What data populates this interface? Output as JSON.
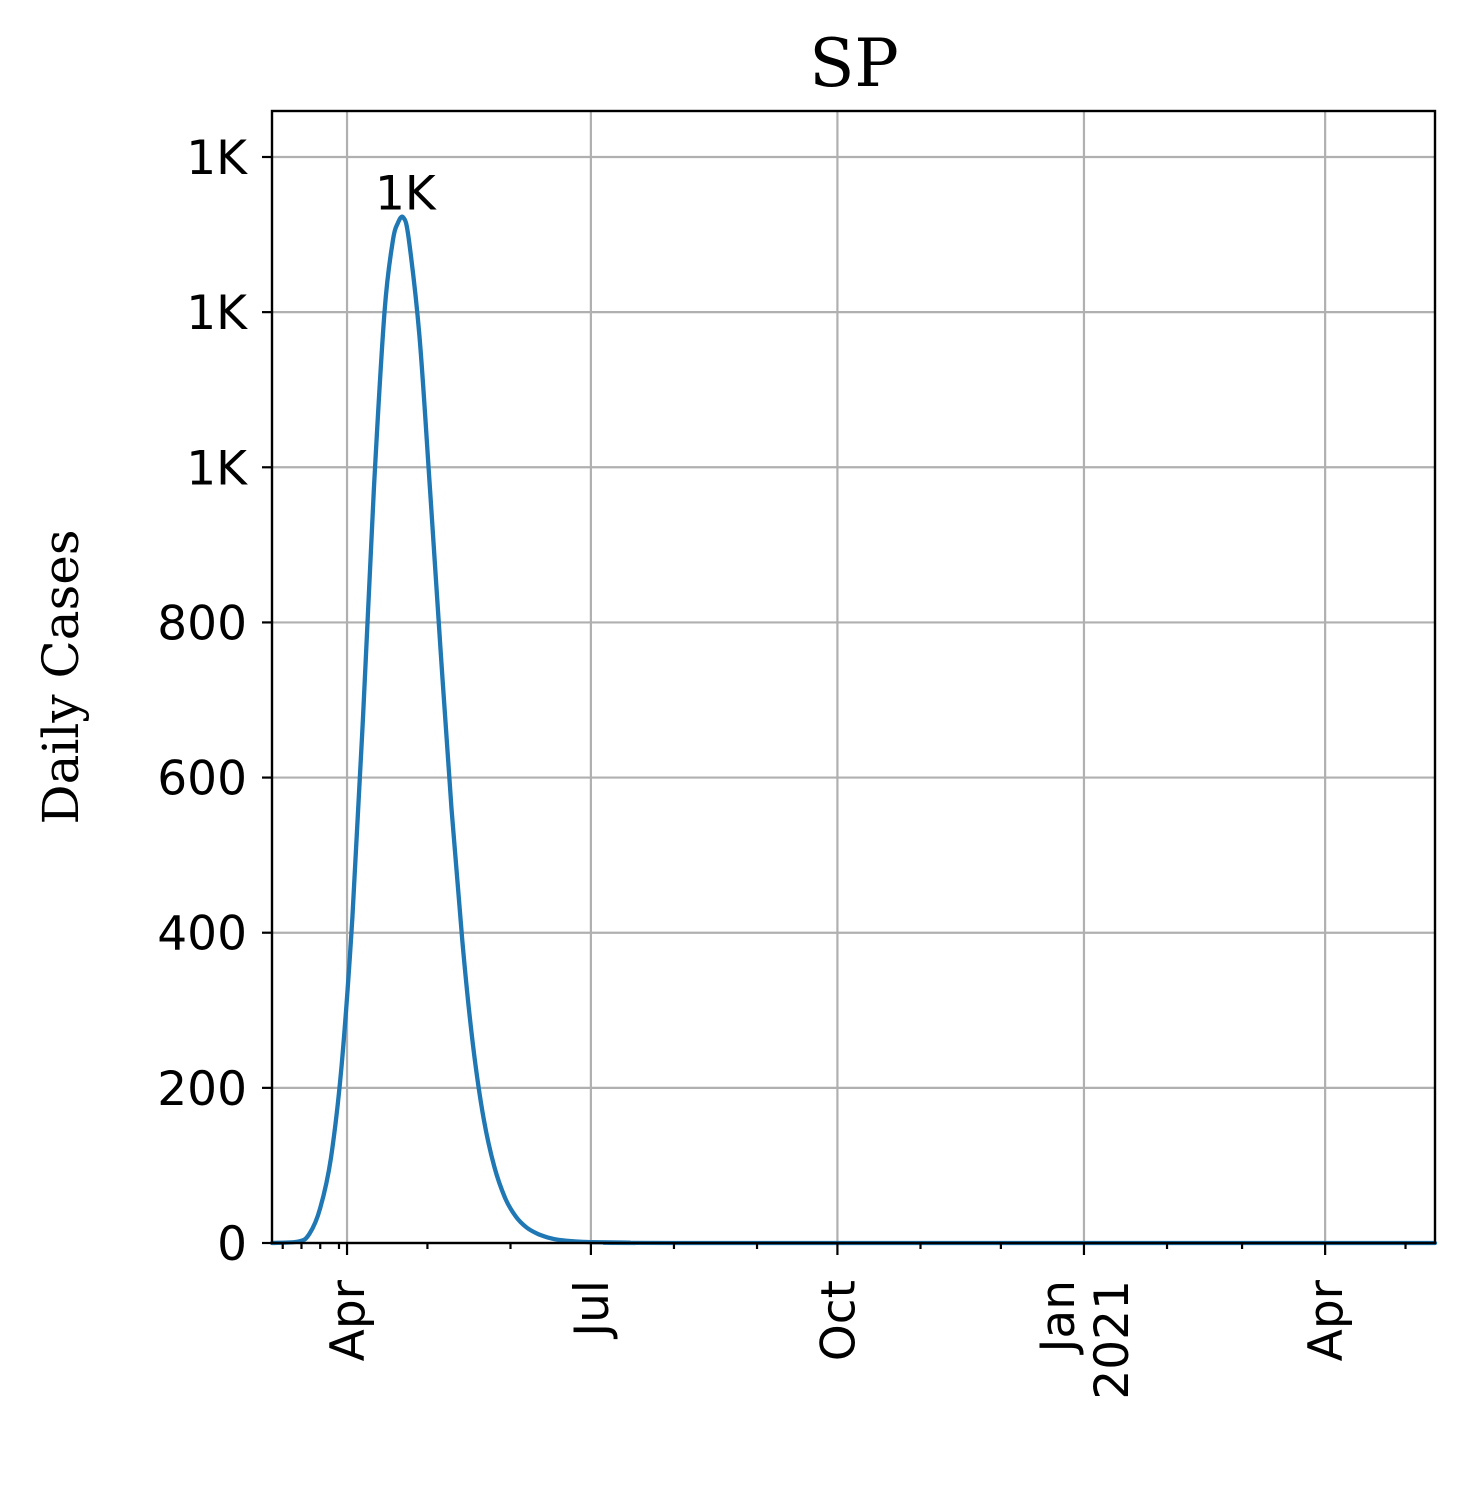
{
  "chart_data": {
    "type": "line",
    "title": "SP",
    "xlabel": "",
    "ylabel": "Daily Cases",
    "grid": true,
    "x_range": [
      "2020-03-04",
      "2021-05-12"
    ],
    "ylim": [
      0,
      1400
    ],
    "y_ticks": [
      {
        "value": 0,
        "label": "0"
      },
      {
        "value": 200,
        "label": "200"
      },
      {
        "value": 400,
        "label": "400"
      },
      {
        "value": 600,
        "label": "600"
      },
      {
        "value": 800,
        "label": "800"
      },
      {
        "value": 1000,
        "label": "1K"
      },
      {
        "value": 1200,
        "label": "1K"
      },
      {
        "value": 1400,
        "label": "1K"
      }
    ],
    "x_ticks": [
      {
        "date": "2020-04-01",
        "lines": [
          "Apr"
        ]
      },
      {
        "date": "2020-07-01",
        "lines": [
          "Jul"
        ]
      },
      {
        "date": "2020-10-01",
        "lines": [
          "Oct"
        ]
      },
      {
        "date": "2021-01-01",
        "lines": [
          "Jan",
          "2021"
        ]
      },
      {
        "date": "2021-04-01",
        "lines": [
          "Apr"
        ]
      }
    ],
    "x_minor_ticks": [
      "2020-03-08",
      "2020-03-15",
      "2020-03-22",
      "2020-03-29",
      "2020-05-01",
      "2020-06-01",
      "2020-08-01",
      "2020-09-01",
      "2020-11-01",
      "2020-12-01",
      "2021-02-01",
      "2021-03-01",
      "2021-05-01"
    ],
    "series": [
      {
        "color": "#1f77b4",
        "points": [
          {
            "x": "2020-03-04",
            "y": 0
          },
          {
            "x": "2020-03-14",
            "y": 2
          },
          {
            "x": "2020-03-18",
            "y": 12
          },
          {
            "x": "2020-03-22",
            "y": 45
          },
          {
            "x": "2020-03-26",
            "y": 110
          },
          {
            "x": "2020-03-30",
            "y": 230
          },
          {
            "x": "2020-04-03",
            "y": 420
          },
          {
            "x": "2020-04-07",
            "y": 680
          },
          {
            "x": "2020-04-11",
            "y": 970
          },
          {
            "x": "2020-04-15",
            "y": 1200
          },
          {
            "x": "2020-04-18",
            "y": 1290
          },
          {
            "x": "2020-04-20",
            "y": 1315
          },
          {
            "x": "2020-04-22",
            "y": 1322
          },
          {
            "x": "2020-04-24",
            "y": 1295
          },
          {
            "x": "2020-04-28",
            "y": 1170
          },
          {
            "x": "2020-05-02",
            "y": 970
          },
          {
            "x": "2020-05-06",
            "y": 760
          },
          {
            "x": "2020-05-10",
            "y": 560
          },
          {
            "x": "2020-05-14",
            "y": 390
          },
          {
            "x": "2020-05-18",
            "y": 255
          },
          {
            "x": "2020-05-22",
            "y": 160
          },
          {
            "x": "2020-05-26",
            "y": 98
          },
          {
            "x": "2020-05-30",
            "y": 58
          },
          {
            "x": "2020-06-03",
            "y": 34
          },
          {
            "x": "2020-06-07",
            "y": 20
          },
          {
            "x": "2020-06-11",
            "y": 12
          },
          {
            "x": "2020-06-15",
            "y": 7
          },
          {
            "x": "2020-06-19",
            "y": 4
          },
          {
            "x": "2020-06-25",
            "y": 2
          },
          {
            "x": "2020-07-01",
            "y": 1
          },
          {
            "x": "2020-07-15",
            "y": 0.5
          },
          {
            "x": "2020-08-01",
            "y": 0
          },
          {
            "x": "2021-05-12",
            "y": 0
          }
        ]
      }
    ],
    "annotations": [
      {
        "x": "2020-04-22",
        "y": 1322,
        "text": "1K"
      }
    ]
  }
}
